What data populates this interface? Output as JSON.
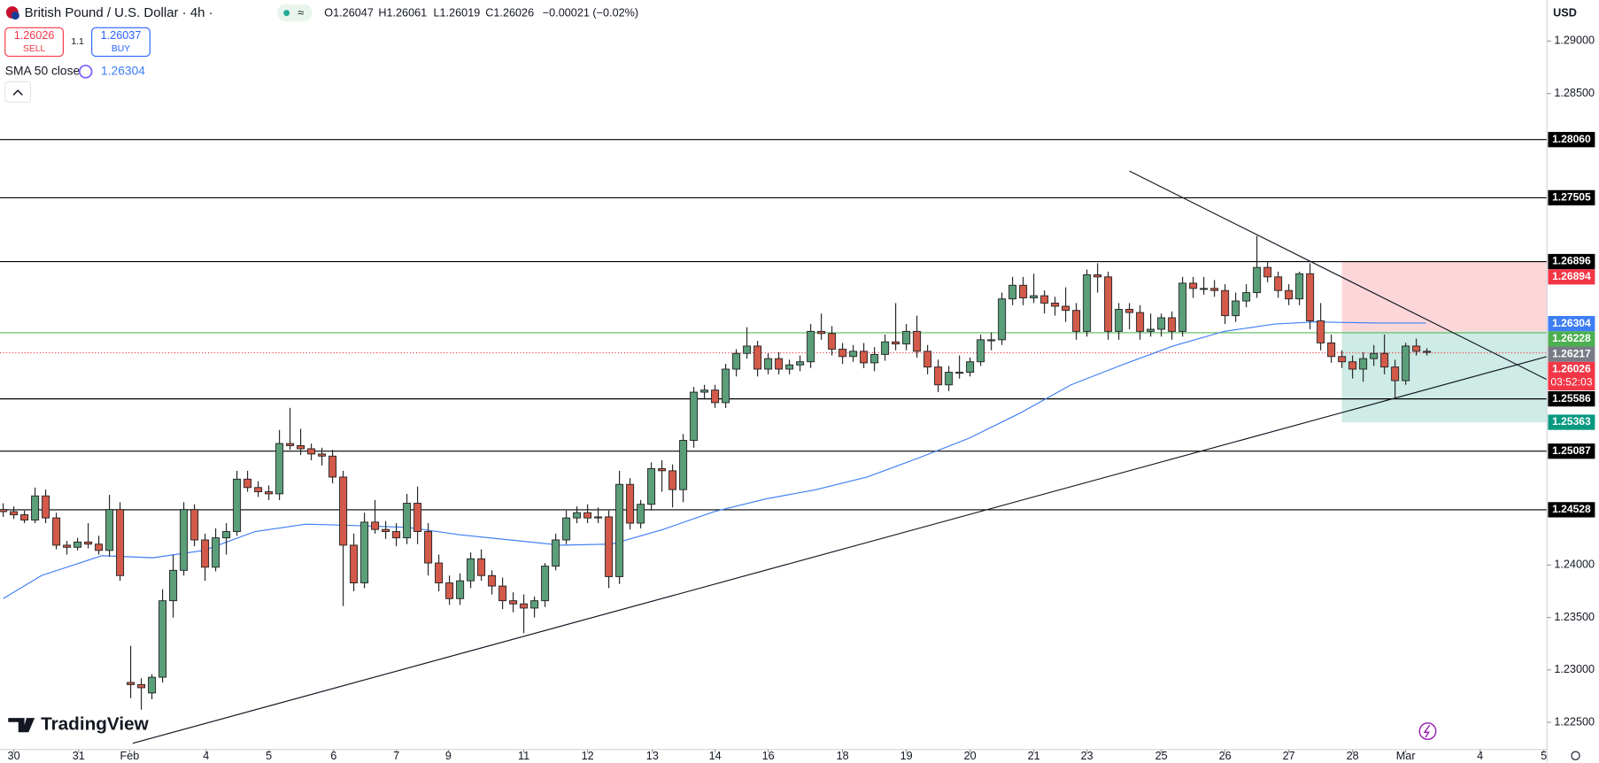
{
  "chart_data": {
    "type": "candlestick",
    "title": "British Pound / U.S. Dollar · 4h ·",
    "ohlc_legend": [
      "O1.26047",
      "H1.26061",
      "L1.26019",
      "C1.26026",
      "−0.00021 (−0.02%)"
    ],
    "trade": {
      "sell_price": 1.26026,
      "sell": "SELL",
      "spread": 1.1,
      "buy_price": 1.26037,
      "buy": "BUY"
    },
    "currency": "USD",
    "brand": "TradingView",
    "up_color": "#5b9f7a",
    "down_color": "#d35a4a",
    "grid": false,
    "xlim": [
      -0.3,
      145.3
    ],
    "ylim": [
      1.2224,
      1.2939
    ],
    "yticks": [
      {
        "value": 1.29,
        "label": "1.29000"
      },
      {
        "value": 1.285,
        "label": "1.28500"
      },
      {
        "value": 1.24,
        "label": "1.24000"
      },
      {
        "value": 1.235,
        "label": "1.23500"
      },
      {
        "value": 1.23,
        "label": "1.23000"
      },
      {
        "value": 1.225,
        "label": "1.22500"
      }
    ],
    "xticks": [
      {
        "value": 1,
        "label": "30"
      },
      {
        "value": 7.1,
        "label": "31"
      },
      {
        "value": 11.9,
        "label": "Feb"
      },
      {
        "value": 19.1,
        "label": "4"
      },
      {
        "value": 25,
        "label": "5"
      },
      {
        "value": 31.1,
        "label": "6"
      },
      {
        "value": 37,
        "label": "7"
      },
      {
        "value": 41.9,
        "label": "9"
      },
      {
        "value": 49,
        "label": "11"
      },
      {
        "value": 55,
        "label": "12"
      },
      {
        "value": 61.1,
        "label": "13"
      },
      {
        "value": 67,
        "label": "14"
      },
      {
        "value": 72,
        "label": "16"
      },
      {
        "value": 79,
        "label": "18"
      },
      {
        "value": 85,
        "label": "19"
      },
      {
        "value": 91,
        "label": "20"
      },
      {
        "value": 97,
        "label": "21"
      },
      {
        "value": 102,
        "label": "23"
      },
      {
        "value": 109,
        "label": "25"
      },
      {
        "value": 115,
        "label": "26"
      },
      {
        "value": 121,
        "label": "27"
      },
      {
        "value": 127,
        "label": "28"
      },
      {
        "value": 132,
        "label": "Mar"
      },
      {
        "value": 139,
        "label": "4"
      },
      {
        "value": 145,
        "label": "5"
      }
    ],
    "ohlc": [
      [
        1.2453,
        1.2459,
        1.2446,
        1.2451
      ],
      [
        1.2451,
        1.2456,
        1.2444,
        1.2448
      ],
      [
        1.2448,
        1.2452,
        1.244,
        1.2443
      ],
      [
        1.2443,
        1.2474,
        1.244,
        1.2466
      ],
      [
        1.2466,
        1.2472,
        1.244,
        1.2445
      ],
      [
        1.2445,
        1.245,
        1.2415,
        1.2419
      ],
      [
        1.2419,
        1.2423,
        1.241,
        1.2417
      ],
      [
        1.2417,
        1.2426,
        1.2414,
        1.2422
      ],
      [
        1.2422,
        1.244,
        1.2416,
        1.242
      ],
      [
        1.242,
        1.2428,
        1.241,
        1.2414
      ],
      [
        1.2414,
        1.2467,
        1.2408,
        1.2453
      ],
      [
        1.2453,
        1.246,
        1.2385,
        1.239
      ],
      [
        1.2288,
        1.2323,
        1.2273,
        1.2286
      ],
      [
        1.2286,
        1.2292,
        1.2262,
        1.2283
      ],
      [
        1.2278,
        1.2296,
        1.2272,
        1.2293
      ],
      [
        1.2293,
        1.2377,
        1.2288,
        1.2366
      ],
      [
        1.2366,
        1.241,
        1.235,
        1.2395
      ],
      [
        1.2395,
        1.246,
        1.239,
        1.2453
      ],
      [
        1.2453,
        1.2458,
        1.2418,
        1.2424
      ],
      [
        1.2424,
        1.243,
        1.2385,
        1.2398
      ],
      [
        1.2398,
        1.2435,
        1.2394,
        1.2426
      ],
      [
        1.2426,
        1.244,
        1.241,
        1.2432
      ],
      [
        1.2432,
        1.249,
        1.2428,
        1.2482
      ],
      [
        1.2482,
        1.249,
        1.247,
        1.2474
      ],
      [
        1.2474,
        1.248,
        1.2465,
        1.247
      ],
      [
        1.247,
        1.2476,
        1.2462,
        1.2468
      ],
      [
        1.2468,
        1.2529,
        1.2462,
        1.2516
      ],
      [
        1.2516,
        1.255,
        1.251,
        1.2514
      ],
      [
        1.2514,
        1.253,
        1.2505,
        1.2511
      ],
      [
        1.2511,
        1.2516,
        1.25,
        1.2506
      ],
      [
        1.2506,
        1.2512,
        1.2495,
        1.2504
      ],
      [
        1.2504,
        1.251,
        1.2478,
        1.2484
      ],
      [
        1.2484,
        1.249,
        1.2361,
        1.2419
      ],
      [
        1.2419,
        1.243,
        1.2375,
        1.2383
      ],
      [
        1.2383,
        1.245,
        1.2378,
        1.2441
      ],
      [
        1.2441,
        1.2462,
        1.243,
        1.2434
      ],
      [
        1.2434,
        1.2442,
        1.2425,
        1.2432
      ],
      [
        1.2432,
        1.244,
        1.2418,
        1.2426
      ],
      [
        1.2426,
        1.2468,
        1.242,
        1.2459
      ],
      [
        1.2459,
        1.2475,
        1.242,
        1.2432
      ],
      [
        1.2432,
        1.244,
        1.239,
        1.2402
      ],
      [
        1.2402,
        1.241,
        1.2375,
        1.2383
      ],
      [
        1.2383,
        1.239,
        1.2362,
        1.2368
      ],
      [
        1.2368,
        1.2392,
        1.2362,
        1.2385
      ],
      [
        1.2385,
        1.2412,
        1.2378,
        1.2406
      ],
      [
        1.2406,
        1.2415,
        1.2385,
        1.239
      ],
      [
        1.239,
        1.2395,
        1.2372,
        1.238
      ],
      [
        1.238,
        1.2388,
        1.2358,
        1.2366
      ],
      [
        1.2366,
        1.2374,
        1.2355,
        1.2363
      ],
      [
        1.2363,
        1.2372,
        1.2335,
        1.2359
      ],
      [
        1.2359,
        1.237,
        1.235,
        1.2366
      ],
      [
        1.2366,
        1.2402,
        1.236,
        1.2399
      ],
      [
        1.2399,
        1.243,
        1.2395,
        1.2424
      ],
      [
        1.2424,
        1.2452,
        1.242,
        1.2445
      ],
      [
        1.2445,
        1.2456,
        1.244,
        1.245
      ],
      [
        1.245,
        1.2458,
        1.244,
        1.2445
      ],
      [
        1.2445,
        1.2455,
        1.244,
        1.2446
      ],
      [
        1.2446,
        1.2452,
        1.2378,
        1.2389
      ],
      [
        1.2389,
        1.249,
        1.2382,
        1.2477
      ],
      [
        1.2477,
        1.2483,
        1.2434,
        1.244
      ],
      [
        1.244,
        1.2462,
        1.2435,
        1.2458
      ],
      [
        1.2458,
        1.2498,
        1.2452,
        1.2492
      ],
      [
        1.2492,
        1.25,
        1.247,
        1.249
      ],
      [
        1.249,
        1.2496,
        1.2455,
        1.2472
      ],
      [
        1.2472,
        1.2525,
        1.246,
        1.2519
      ],
      [
        1.2519,
        1.257,
        1.2512,
        1.2565
      ],
      [
        1.2565,
        1.2572,
        1.2558,
        1.2567
      ],
      [
        1.2567,
        1.2572,
        1.255,
        1.2555
      ],
      [
        1.2555,
        1.2592,
        1.255,
        1.2587
      ],
      [
        1.2587,
        1.2606,
        1.258,
        1.2602
      ],
      [
        1.2602,
        1.2627,
        1.2597,
        1.2609
      ],
      [
        1.2609,
        1.2614,
        1.258,
        1.2587
      ],
      [
        1.2587,
        1.2602,
        1.2582,
        1.2597
      ],
      [
        1.2597,
        1.2603,
        1.2582,
        1.2587
      ],
      [
        1.2587,
        1.2596,
        1.2582,
        1.2591
      ],
      [
        1.2591,
        1.26,
        1.2585,
        1.2594
      ],
      [
        1.2594,
        1.263,
        1.2588,
        1.2623
      ],
      [
        1.2623,
        1.264,
        1.2615,
        1.2621
      ],
      [
        1.2621,
        1.2628,
        1.26,
        1.2606
      ],
      [
        1.2606,
        1.2612,
        1.2592,
        1.2599
      ],
      [
        1.2599,
        1.261,
        1.2594,
        1.2604
      ],
      [
        1.2604,
        1.2612,
        1.2588,
        1.2593
      ],
      [
        1.2593,
        1.2608,
        1.2585,
        1.2601
      ],
      [
        1.2601,
        1.262,
        1.2595,
        1.2613
      ],
      [
        1.2613,
        1.265,
        1.2605,
        1.2611
      ],
      [
        1.2611,
        1.263,
        1.2605,
        1.2623
      ],
      [
        1.2623,
        1.2638,
        1.2598,
        1.2604
      ],
      [
        1.2604,
        1.261,
        1.2582,
        1.2589
      ],
      [
        1.2589,
        1.2596,
        1.2565,
        1.2572
      ],
      [
        1.2572,
        1.259,
        1.2566,
        1.2584
      ],
      [
        1.2584,
        1.26,
        1.2578,
        1.2584
      ],
      [
        1.2584,
        1.2598,
        1.258,
        1.2594
      ],
      [
        1.2594,
        1.262,
        1.259,
        1.2615
      ],
      [
        1.2615,
        1.2622,
        1.2605,
        1.2615
      ],
      [
        1.2615,
        1.266,
        1.261,
        1.2654
      ],
      [
        1.2654,
        1.2675,
        1.2648,
        1.2667
      ],
      [
        1.2667,
        1.2675,
        1.2648,
        1.2655
      ],
      [
        1.2655,
        1.2678,
        1.265,
        1.2657
      ],
      [
        1.2657,
        1.2662,
        1.264,
        1.265
      ],
      [
        1.265,
        1.2656,
        1.2638,
        1.2647
      ],
      [
        1.2647,
        1.2665,
        1.2632,
        1.2643
      ],
      [
        1.2643,
        1.265,
        1.2615,
        1.2623
      ],
      [
        1.2623,
        1.2682,
        1.2618,
        1.2677
      ],
      [
        1.2677,
        1.2688,
        1.266,
        1.2675
      ],
      [
        1.2675,
        1.268,
        1.2615,
        1.2623
      ],
      [
        1.2623,
        1.265,
        1.2615,
        1.2644
      ],
      [
        1.2644,
        1.265,
        1.2625,
        1.2641
      ],
      [
        1.2641,
        1.2648,
        1.2615,
        1.2623
      ],
      [
        1.2623,
        1.264,
        1.2618,
        1.2625
      ],
      [
        1.2625,
        1.264,
        1.2618,
        1.2636
      ],
      [
        1.2636,
        1.2642,
        1.2615,
        1.2623
      ],
      [
        1.2623,
        1.2675,
        1.2618,
        1.2669
      ],
      [
        1.2669,
        1.2675,
        1.2655,
        1.2664
      ],
      [
        1.2664,
        1.2675,
        1.2658,
        1.2664
      ],
      [
        1.2664,
        1.2672,
        1.2656,
        1.2662
      ],
      [
        1.2662,
        1.2668,
        1.263,
        1.2638
      ],
      [
        1.2638,
        1.266,
        1.2632,
        1.2652
      ],
      [
        1.2652,
        1.2668,
        1.2646,
        1.266
      ],
      [
        1.266,
        1.2714,
        1.2655,
        1.2684
      ],
      [
        1.2684,
        1.269,
        1.267,
        1.2675
      ],
      [
        1.2675,
        1.268,
        1.2655,
        1.2662
      ],
      [
        1.2662,
        1.2668,
        1.2648,
        1.2654
      ],
      [
        1.2654,
        1.268,
        1.2648,
        1.2678
      ],
      [
        1.2678,
        1.2688,
        1.2625,
        1.2633
      ],
      [
        1.2633,
        1.265,
        1.2605,
        1.2612
      ],
      [
        1.2612,
        1.262,
        1.2593,
        1.2599
      ],
      [
        1.2599,
        1.2605,
        1.2588,
        1.2594
      ],
      [
        1.2594,
        1.26,
        1.2578,
        1.2587
      ],
      [
        1.2587,
        1.2603,
        1.2575,
        1.2597
      ],
      [
        1.2597,
        1.261,
        1.259,
        1.2602
      ],
      [
        1.2602,
        1.262,
        1.2582,
        1.2589
      ],
      [
        1.2589,
        1.2596,
        1.256,
        1.2576
      ],
      [
        1.2576,
        1.2612,
        1.2572,
        1.2609
      ],
      [
        1.2609,
        1.2616,
        1.26,
        1.2604
      ],
      [
        1.2604,
        1.2607,
        1.26,
        1.2603
      ]
    ],
    "indicator": {
      "name": "SMA 50 close",
      "value": 1.26304,
      "color": "#3d7ef5",
      "x": [
        0,
        3.6,
        9.3,
        14.1,
        18.9,
        23.7,
        28.5,
        32.3,
        38.1,
        42.9,
        47.7,
        52.5,
        57.3,
        62.1,
        66.9,
        71.7,
        76.5,
        81.3,
        86.1,
        90.9,
        95.7,
        100.5,
        105.3,
        110.1,
        114.9,
        119.7,
        123.5,
        129.3,
        133.9
      ],
      "values": [
        1.2368,
        1.239,
        1.2409,
        1.2407,
        1.2414,
        1.2432,
        1.2439,
        1.2438,
        1.2436,
        1.2429,
        1.2424,
        1.2419,
        1.242,
        1.2434,
        1.2451,
        1.2463,
        1.2472,
        1.2484,
        1.2502,
        1.2521,
        1.2545,
        1.2572,
        1.2591,
        1.2609,
        1.2623,
        1.263,
        1.2632,
        1.2631,
        1.2631
      ]
    },
    "levels": [
      {
        "value": 1.2806,
        "label": "1.28060",
        "color": "#000000"
      },
      {
        "value": 1.27505,
        "label": "1.27505",
        "color": "#000000"
      },
      {
        "value": 1.26896,
        "label": "1.26896",
        "color": "#000000"
      },
      {
        "value": 1.26217,
        "label": "1.26217",
        "color": "#5cb85c"
      },
      {
        "value": 1.25586,
        "label": "1.25586",
        "color": "#000000"
      },
      {
        "value": 1.25087,
        "label": "1.25087",
        "color": "#000000"
      },
      {
        "value": 1.24528,
        "label": "1.24528",
        "color": "#000000"
      }
    ],
    "position": {
      "x_start": 126,
      "stop": {
        "value": 1.26894,
        "label": "1.26894"
      },
      "entry": {
        "value": 1.26228,
        "label": "1.26228"
      },
      "target": {
        "value": 1.25363,
        "label": "1.25363"
      }
    },
    "current_price": {
      "value": 1.26026,
      "label": "1.26026",
      "countdown": "03:52:03"
    },
    "trend_lines": [
      {
        "x": [
          106,
          145.3
        ],
        "values": [
          1.2776,
          1.2577
        ]
      },
      {
        "x": [
          12.2,
          145.3
        ],
        "values": [
          1.223,
          1.2599
        ]
      }
    ]
  }
}
